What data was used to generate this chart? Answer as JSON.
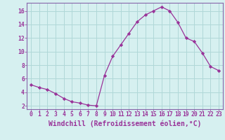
{
  "x": [
    0,
    1,
    2,
    3,
    4,
    5,
    6,
    7,
    8,
    9,
    10,
    11,
    12,
    13,
    14,
    15,
    16,
    17,
    18,
    19,
    20,
    21,
    22,
    23
  ],
  "y": [
    5.1,
    4.7,
    4.4,
    3.8,
    3.1,
    2.6,
    2.4,
    2.1,
    2.0,
    6.5,
    9.3,
    11.0,
    12.7,
    14.4,
    15.4,
    16.0,
    16.6,
    16.0,
    14.3,
    12.0,
    11.5,
    9.8,
    7.8,
    7.2
  ],
  "line_color": "#993399",
  "marker": "D",
  "marker_size": 2.2,
  "bg_color": "#d6f0f0",
  "grid_color": "#b0d8d8",
  "xlabel": "Windchill (Refroidissement éolien,°C)",
  "ylabel_ticks": [
    2,
    4,
    6,
    8,
    10,
    12,
    14,
    16
  ],
  "xlim": [
    -0.5,
    23.5
  ],
  "ylim": [
    1.5,
    17.2
  ],
  "xticks": [
    0,
    1,
    2,
    3,
    4,
    5,
    6,
    7,
    8,
    9,
    10,
    11,
    12,
    13,
    14,
    15,
    16,
    17,
    18,
    19,
    20,
    21,
    22,
    23
  ],
  "tick_fontsize": 5.8,
  "xlabel_fontsize": 7.0,
  "label_color": "#993399",
  "axis_color": "#993399",
  "spine_color": "#8866aa"
}
